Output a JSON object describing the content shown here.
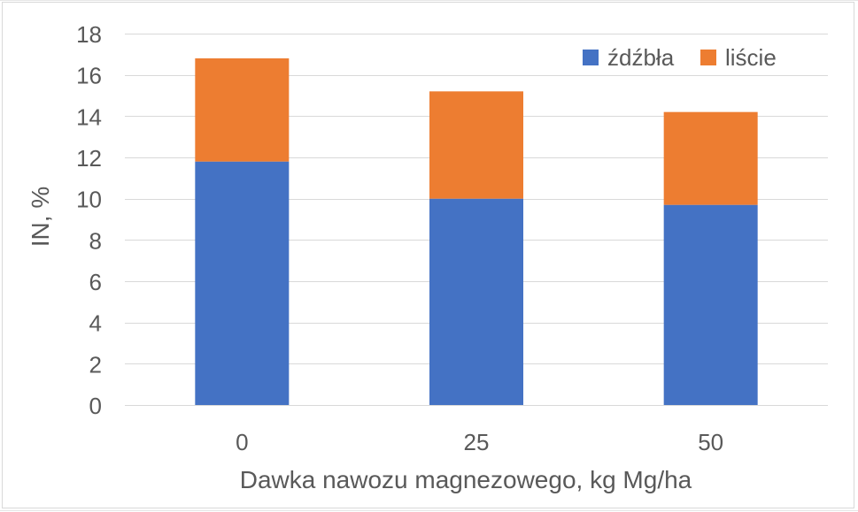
{
  "chart_data": {
    "type": "bar",
    "stacked": true,
    "categories": [
      "0",
      "25",
      "50"
    ],
    "series": [
      {
        "name": "źdźbła",
        "values": [
          11.8,
          10.0,
          9.7
        ],
        "color": "#4472c4"
      },
      {
        "name": "liście",
        "values": [
          5.0,
          5.2,
          4.5
        ],
        "color": "#ed7d31"
      }
    ],
    "xlabel": "Dawka nawozu magnezowego, kg Mg/ha",
    "ylabel": "IN, %",
    "ylim": [
      0,
      18
    ],
    "yticks": [
      "0",
      "2",
      "4",
      "6",
      "8",
      "10",
      "12",
      "14",
      "16",
      "18"
    ],
    "grid": true,
    "legend_position": "top-right"
  }
}
